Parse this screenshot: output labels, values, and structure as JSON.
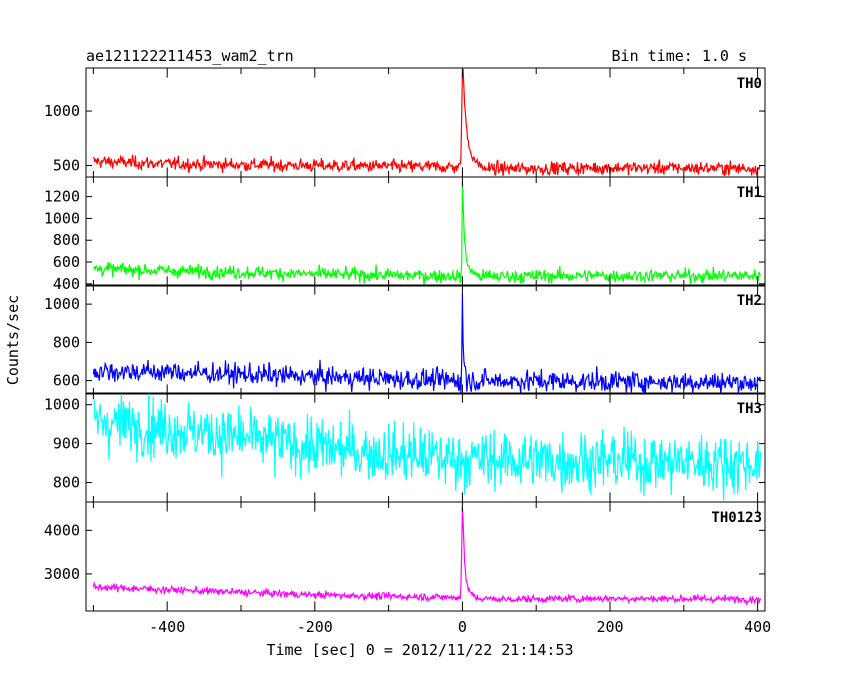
{
  "header": {
    "title": "ae121122211453_wam2_trn",
    "bin_time": "Bin time: 1.0 s"
  },
  "chart_data": {
    "type": "line",
    "xlabel": "Time [sec] 0 = 2012/11/22 21:14:53",
    "ylabel": "Counts/sec",
    "xlim": [
      -510,
      410
    ],
    "xticks": [
      -400,
      -200,
      0,
      200,
      400
    ],
    "bin_time_s": 1.0,
    "panels": [
      {
        "name": "TH0",
        "color": "#ff0000",
        "ylim": [
          395,
          1395
        ],
        "yticks": [
          500,
          1000
        ],
        "baseline": {
          "t": [
            -500,
            -400,
            -200,
            -50,
            -5,
            50,
            200,
            400
          ],
          "v": [
            540,
            515,
            500,
            490,
            485,
            470,
            480,
            475
          ]
        },
        "noise_sigma": 30,
        "burst": {
          "t": [
            -2,
            0,
            1,
            2,
            3,
            5,
            8,
            12,
            18,
            25
          ],
          "v": [
            600,
            1350,
            1400,
            1250,
            1100,
            900,
            700,
            600,
            540,
            500
          ]
        }
      },
      {
        "name": "TH1",
        "color": "#00ff00",
        "ylim": [
          380,
          1380
        ],
        "yticks": [
          400,
          600,
          800,
          1000,
          1200
        ],
        "baseline": {
          "t": [
            -500,
            -400,
            -200,
            -50,
            50,
            200,
            400
          ],
          "v": [
            540,
            520,
            490,
            475,
            470,
            475,
            475
          ]
        },
        "noise_sigma": 30,
        "burst": {
          "t": [
            -1,
            0,
            1,
            2,
            3,
            5,
            8,
            12,
            18
          ],
          "v": [
            600,
            1350,
            1150,
            950,
            800,
            650,
            560,
            520,
            490
          ]
        }
      },
      {
        "name": "TH2",
        "color": "#0000ff",
        "ylim": [
          530,
          1100
        ],
        "yticks": [
          600,
          800,
          1000
        ],
        "baseline": {
          "t": [
            -500,
            -400,
            -200,
            0,
            200,
            400
          ],
          "v": [
            650,
            645,
            620,
            600,
            595,
            590
          ]
        },
        "noise_sigma": 28,
        "burst": {
          "t": [
            -1,
            0,
            1,
            2,
            3,
            5
          ],
          "v": [
            700,
            1050,
            800,
            720,
            680,
            640
          ]
        }
      },
      {
        "name": "TH3",
        "color": "#00ffff",
        "ylim": [
          750,
          1030
        ],
        "yticks": [
          800,
          900,
          1000
        ],
        "baseline": {
          "t": [
            -500,
            -400,
            -200,
            0,
            200,
            400
          ],
          "v": [
            960,
            940,
            890,
            860,
            855,
            850
          ]
        },
        "noise_sigma": 38,
        "burst": {
          "t": [],
          "v": []
        }
      },
      {
        "name": "TH0123",
        "color": "#ff00ff",
        "ylim": [
          2150,
          4650
        ],
        "yticks": [
          3000,
          4000
        ],
        "baseline": {
          "t": [
            -500,
            -400,
            -200,
            -5,
            50,
            200,
            400
          ],
          "v": [
            2700,
            2640,
            2520,
            2460,
            2420,
            2440,
            2420
          ]
        },
        "noise_sigma": 40,
        "burst": {
          "t": [
            -2,
            0,
            1,
            2,
            3,
            5,
            8,
            12,
            18
          ],
          "v": [
            2700,
            4500,
            4200,
            3700,
            3300,
            2900,
            2650,
            2550,
            2450
          ]
        }
      }
    ]
  }
}
